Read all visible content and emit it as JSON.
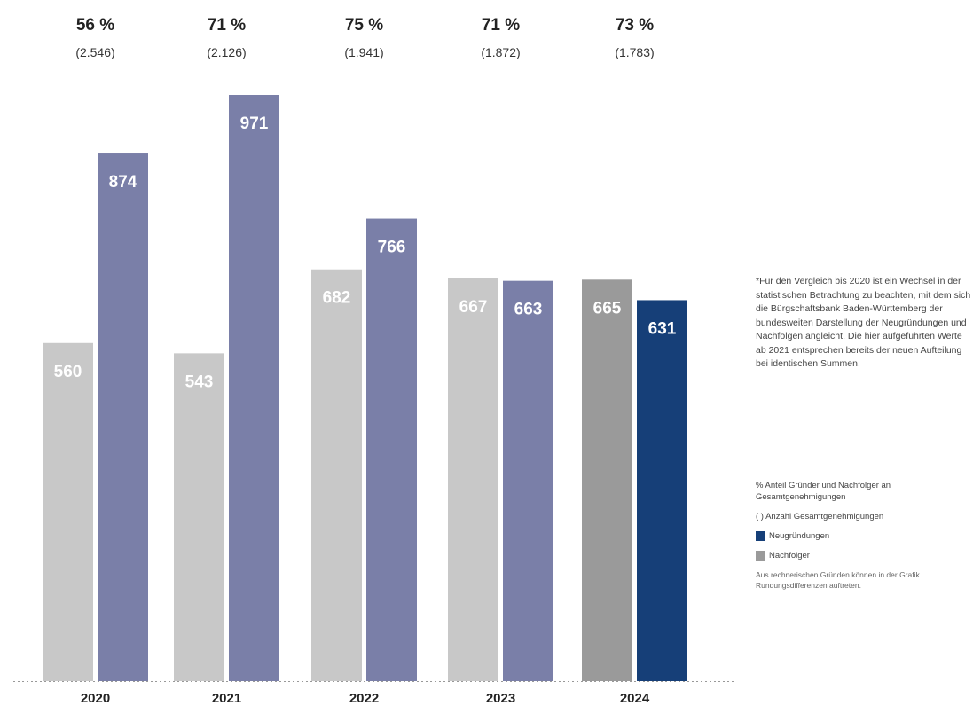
{
  "chart_data": {
    "type": "bar",
    "categories": [
      "2020",
      "2021",
      "2022",
      "2023",
      "2024"
    ],
    "series": [
      {
        "name": "Nachfolger",
        "values": [
          560,
          543,
          682,
          667,
          665
        ]
      },
      {
        "name": "Neugründungen",
        "values": [
          874,
          971,
          766,
          663,
          631
        ]
      }
    ],
    "share_labels": [
      "56 %",
      "71 %",
      "75 %",
      "71 %",
      "73 %"
    ],
    "total_labels": [
      "(2.546)",
      "(2.126)",
      "(1.941)",
      "(1.872)",
      "(1.783)"
    ],
    "ylim": [
      0,
      1000
    ],
    "grid": false,
    "colors": {
      "nachfolger_past": "#c8c8c8",
      "nachfolger_2024": "#9a9a9a",
      "neugruendungen_past": "#7a7fa8",
      "neugruendungen_2024": "#163f78",
      "baseline": "#999999"
    }
  },
  "footnote": "*Für den Vergleich bis 2020 ist ein Wechsel in der statistischen Betrachtung zu beachten, mit dem sich die Bürgschaftsbank Baden-Württemberg der bundesweiten Darstellung der Neugründungen und Nachfolgen angleicht. Die hier aufgeführten Werte ab 2021 entsprechen bereits der neuen Aufteilung bei identischen Summen.",
  "legend": {
    "share": "% Anteil Gründer und Nachfolger an Gesamtgenehmigungen",
    "count": "( ) Anzahl Gesamtgenehmigungen",
    "neugruendungen": "Neugründungen",
    "nachfolger": "Nachfolger"
  },
  "rounding_note": "Aus rechnerischen Gründen können in der Grafik Rundungsdifferenzen auftreten."
}
